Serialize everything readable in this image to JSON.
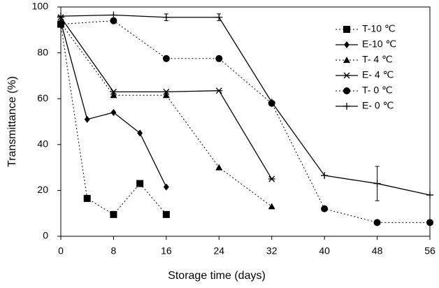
{
  "chart_data": {
    "type": "line",
    "xlabel": "Storage time (days)",
    "ylabel": "Transmittance (%)",
    "xlim": [
      0,
      56
    ],
    "xticks": [
      0,
      8,
      16,
      24,
      32,
      40,
      48,
      56
    ],
    "ylim": [
      0,
      100
    ],
    "yticks": [
      0,
      20,
      40,
      60,
      80,
      100
    ],
    "legend": "upper right",
    "series": [
      {
        "name": "T-10 ℃",
        "color": "#000000",
        "marker": "square",
        "line": "dotted",
        "x": [
          0,
          4,
          8,
          12,
          16
        ],
        "values": [
          92.5,
          16.5,
          9.5,
          23,
          9.5
        ]
      },
      {
        "name": "E-10 ℃",
        "color": "#000000",
        "marker": "diamond",
        "line": "solid",
        "x": [
          0,
          4,
          8,
          12,
          16
        ],
        "values": [
          93.5,
          51,
          54,
          45,
          21.5
        ]
      },
      {
        "name": "T- 4 ℃",
        "color": "#000000",
        "marker": "triangle",
        "line": "dotted",
        "x": [
          0,
          8,
          16,
          24,
          32
        ],
        "values": [
          93,
          61.5,
          61.5,
          30,
          13
        ]
      },
      {
        "name": "E- 4 ℃",
        "color": "#000000",
        "marker": "asterisk",
        "line": "solid",
        "x": [
          0,
          8,
          16,
          24,
          32
        ],
        "values": [
          95.5,
          63,
          63,
          63.5,
          25
        ]
      },
      {
        "name": "T- 0 ℃",
        "color": "#000000",
        "marker": "circle",
        "line": "dotted",
        "x": [
          0,
          8,
          16,
          24,
          32,
          40,
          48,
          56
        ],
        "values": [
          92.5,
          94,
          77.5,
          77.5,
          58,
          12,
          6,
          6
        ]
      },
      {
        "name": "E- 0 ℃",
        "color": "#000000",
        "marker": "plus",
        "line": "solid",
        "x": [
          0,
          8,
          16,
          24,
          32,
          40,
          48,
          56
        ],
        "values": [
          96,
          96.5,
          95.5,
          95.5,
          58.5,
          26.5,
          23,
          18
        ],
        "errors": [
          null,
          null,
          1.5,
          1.5,
          null,
          null,
          7.5,
          null
        ]
      }
    ]
  }
}
